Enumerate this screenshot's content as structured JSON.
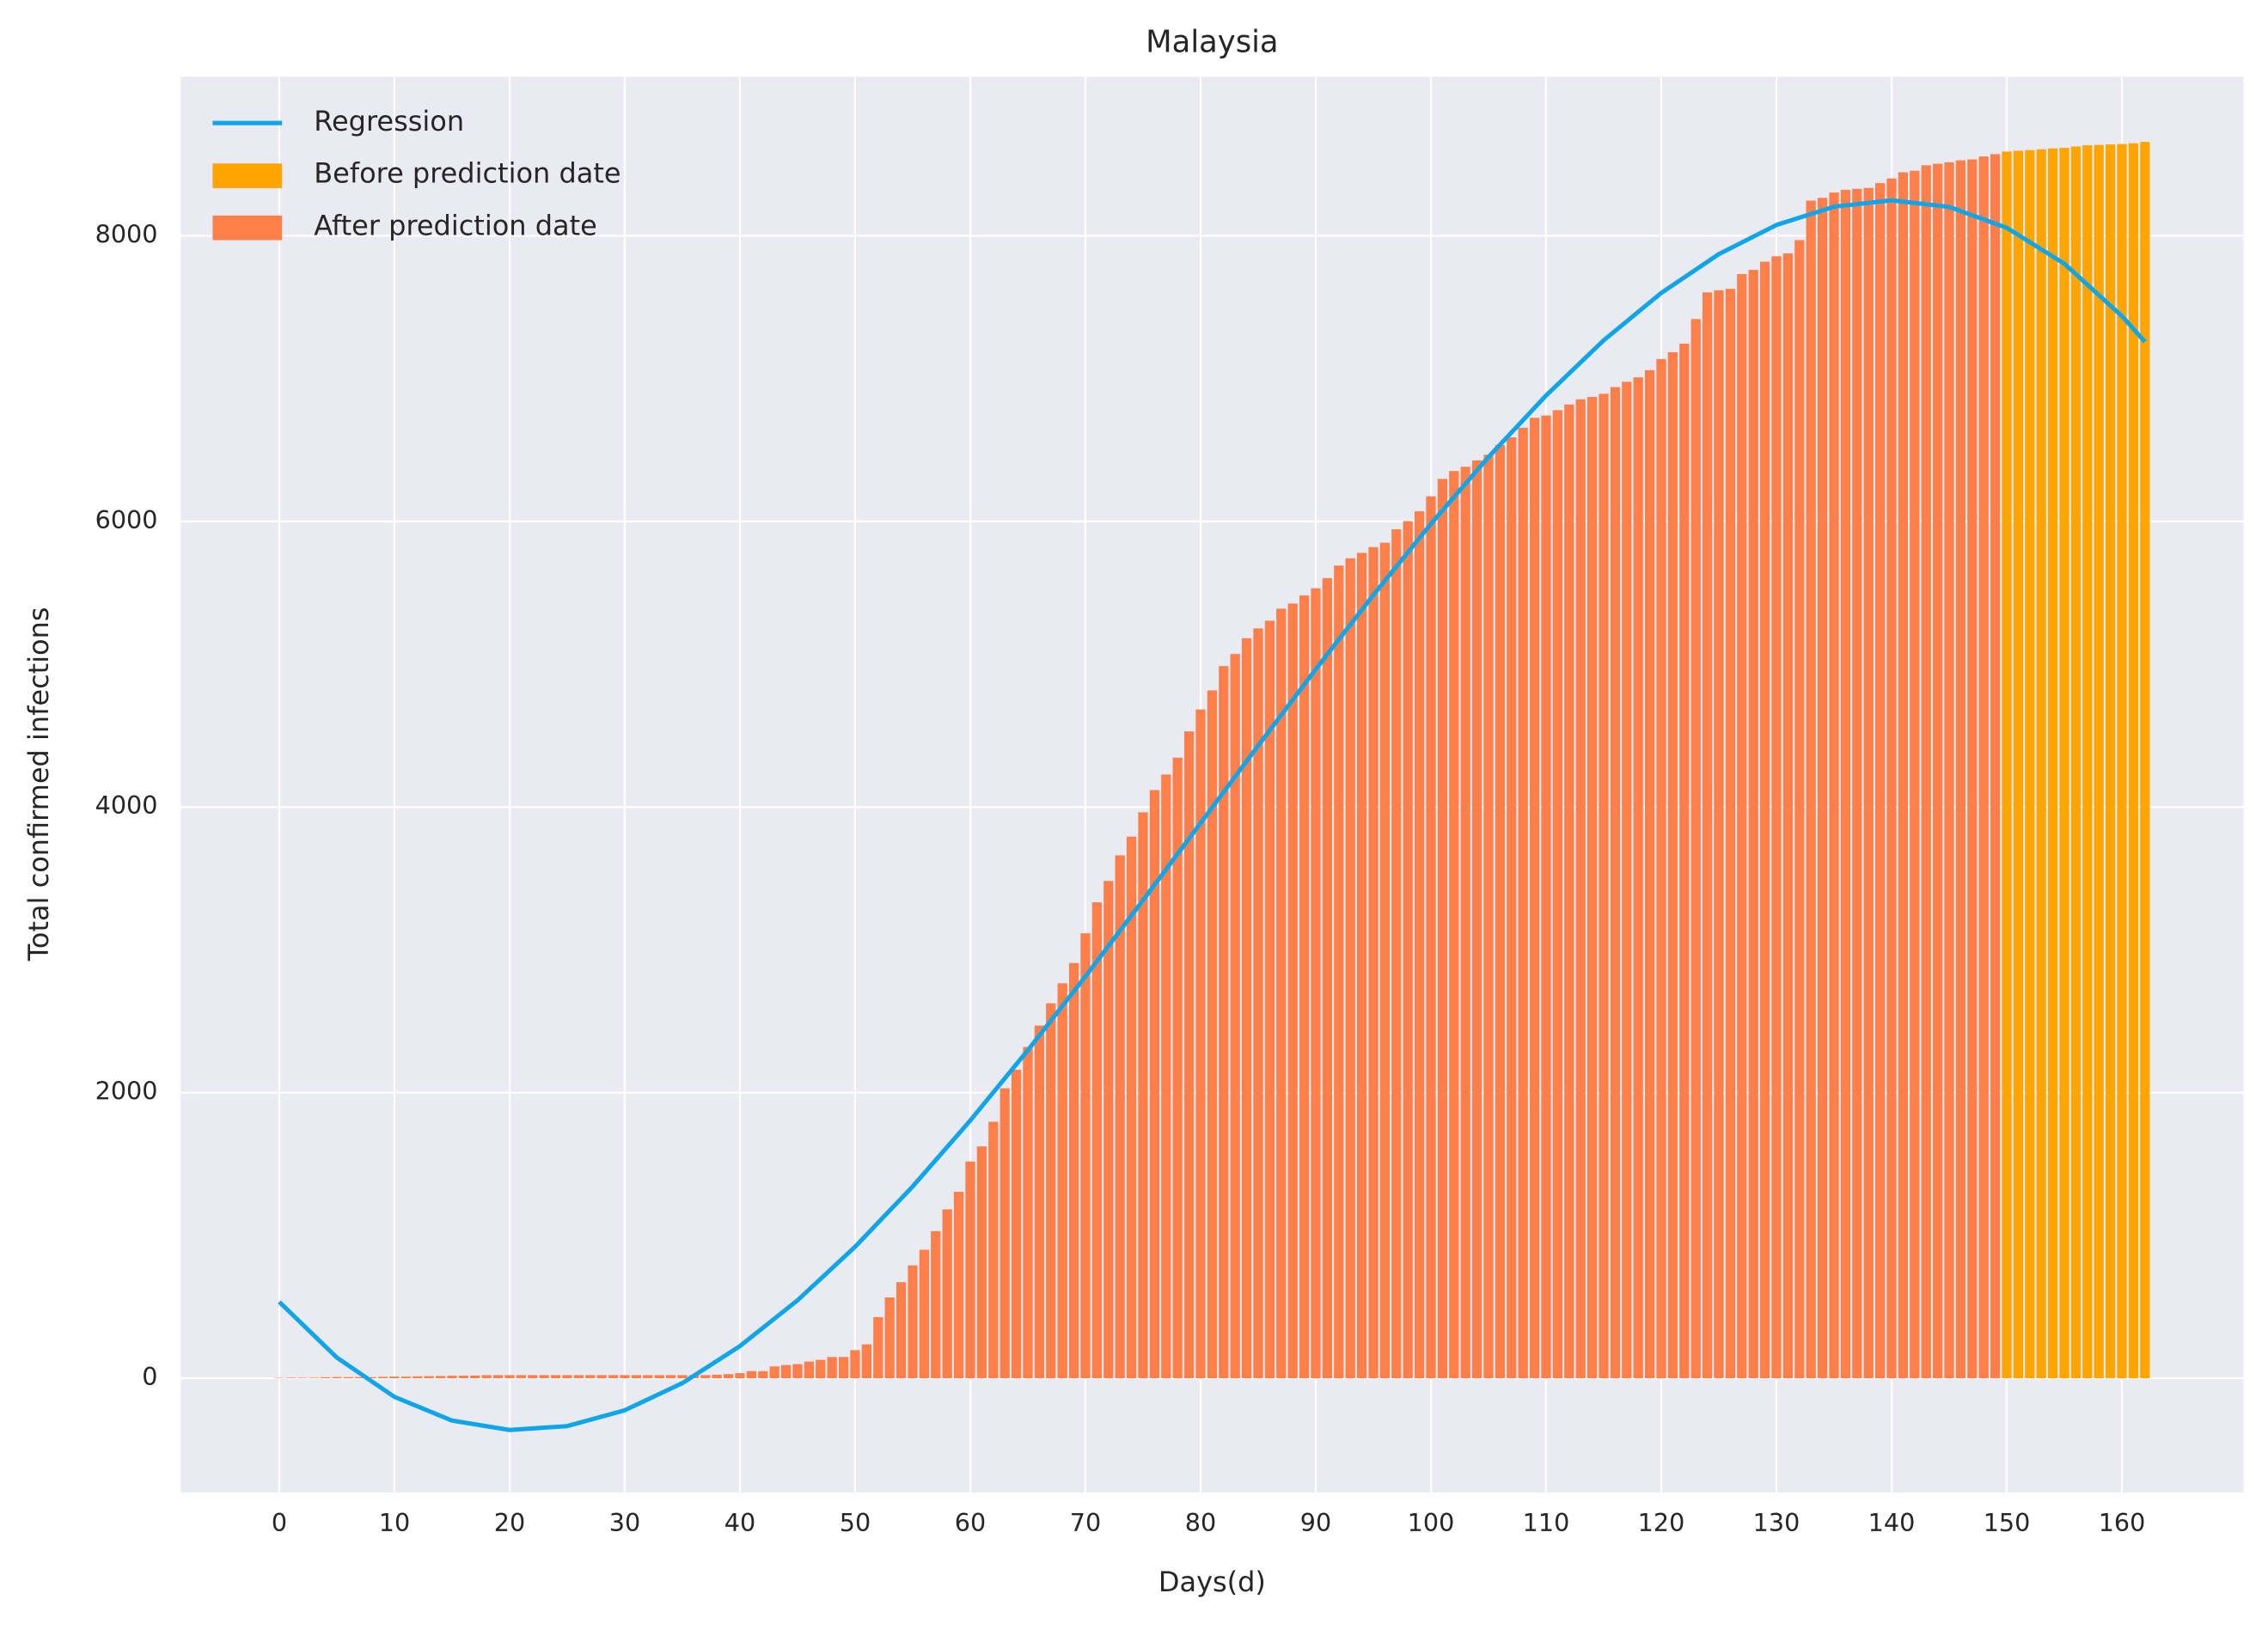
{
  "chart_data": {
    "type": "bar",
    "title": "Malaysia",
    "x_label": "Days(d)",
    "y_label": "Total confirmed infections",
    "xlim": [
      -8.55,
      170.55
    ],
    "ylim": [
      -800,
      9114
    ],
    "xticks": [
      0,
      10,
      20,
      30,
      40,
      50,
      60,
      70,
      80,
      90,
      100,
      110,
      120,
      130,
      140,
      150,
      160
    ],
    "yticks": [
      0,
      2000,
      4000,
      6000,
      8000
    ],
    "grid": true,
    "legend": "upper left",
    "regression": {
      "name": "Regression",
      "color": "#0ea5e9",
      "x": [
        0,
        5,
        10,
        15,
        20,
        25,
        30,
        35,
        40,
        45,
        50,
        55,
        60,
        65,
        70,
        75,
        80,
        85,
        90,
        95,
        100,
        105,
        110,
        115,
        120,
        125,
        130,
        135,
        140,
        145,
        150,
        155,
        160,
        162
      ],
      "values": [
        535,
        145,
        -130,
        -296,
        -362,
        -335,
        -224,
        -34,
        225,
        546,
        921,
        1343,
        1805,
        2297,
        2814,
        3347,
        3888,
        4430,
        4965,
        5485,
        5983,
        6451,
        6882,
        7268,
        7600,
        7872,
        8076,
        8204,
        8249,
        8203,
        8056,
        7805,
        7438,
        7258
      ]
    },
    "series": [
      {
        "name": "Before prediction date",
        "color": "#ffa500",
        "x": [
          150,
          151,
          152,
          153,
          154,
          155,
          156,
          157,
          158,
          159,
          160,
          161,
          162
        ],
        "values": [
          8590,
          8596,
          8600,
          8606,
          8612,
          8616,
          8626,
          8634,
          8637,
          8640,
          8643,
          8648,
          8658
        ]
      },
      {
        "name": "After prediction date",
        "color": "#ff7f4a",
        "x": [
          0,
          1,
          2,
          3,
          4,
          5,
          6,
          7,
          8,
          9,
          10,
          11,
          12,
          13,
          14,
          15,
          16,
          17,
          18,
          19,
          20,
          21,
          22,
          23,
          24,
          25,
          26,
          27,
          28,
          29,
          30,
          31,
          32,
          33,
          34,
          35,
          36,
          37,
          38,
          39,
          40,
          41,
          42,
          43,
          44,
          45,
          46,
          47,
          48,
          49,
          50,
          51,
          52,
          53,
          54,
          55,
          56,
          57,
          58,
          59,
          60,
          61,
          62,
          63,
          64,
          65,
          66,
          67,
          68,
          69,
          70,
          71,
          72,
          73,
          74,
          75,
          76,
          77,
          78,
          79,
          80,
          81,
          82,
          83,
          84,
          85,
          86,
          87,
          88,
          89,
          90,
          91,
          92,
          93,
          94,
          95,
          96,
          97,
          98,
          99,
          100,
          101,
          102,
          103,
          104,
          105,
          106,
          107,
          108,
          109,
          110,
          111,
          112,
          113,
          114,
          115,
          116,
          117,
          118,
          119,
          120,
          121,
          122,
          123,
          124,
          125,
          126,
          127,
          128,
          129,
          130,
          131,
          132,
          133,
          134,
          135,
          136,
          137,
          138,
          139,
          140,
          141,
          142,
          143,
          144,
          145,
          146,
          147,
          148,
          149
        ],
        "values": [
          3,
          4,
          4,
          4,
          7,
          8,
          8,
          8,
          8,
          10,
          12,
          12,
          14,
          15,
          16,
          18,
          18,
          19,
          22,
          22,
          22,
          22,
          22,
          22,
          22,
          22,
          22,
          22,
          22,
          22,
          22,
          22,
          22,
          22,
          22,
          22,
          22,
          22,
          25,
          29,
          36,
          50,
          50,
          83,
          93,
          99,
          117,
          129,
          149,
          149,
          197,
          238,
          428,
          566,
          673,
          790,
          900,
          1030,
          1183,
          1306,
          1518,
          1624,
          1796,
          2031,
          2161,
          2320,
          2470,
          2626,
          2766,
          2908,
          3116,
          3333,
          3483,
          3662,
          3793,
          3963,
          4119,
          4228,
          4346,
          4530,
          4683,
          4817,
          4987,
          5072,
          5182,
          5251,
          5305,
          5389,
          5425,
          5482,
          5532,
          5603,
          5691,
          5742,
          5780,
          5820,
          5851,
          5945,
          6002,
          6071,
          6176,
          6298,
          6353,
          6383,
          6428,
          6467,
          6535,
          6589,
          6656,
          6726,
          6742,
          6779,
          6819,
          6855,
          6872,
          6894,
          6941,
          6978,
          7009,
          7059,
          7137,
          7185,
          7245,
          7417,
          7604,
          7619,
          7629,
          7732,
          7762,
          7819,
          7857,
          7877,
          7970,
          8247,
          8266,
          8303,
          8322,
          8329,
          8336,
          8369,
          8402,
          8445,
          8456,
          8494,
          8505,
          8515,
          8529,
          8535,
          8556,
          8572
        ]
      }
    ]
  }
}
